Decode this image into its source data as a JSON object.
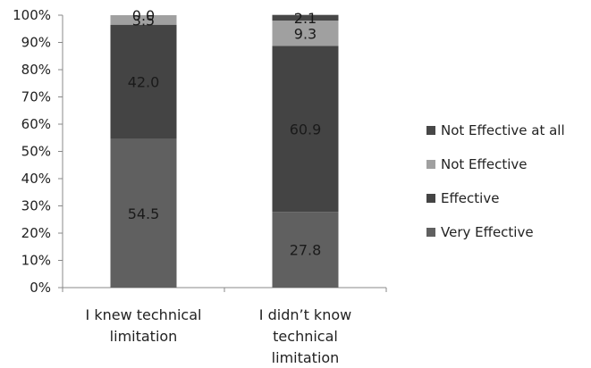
{
  "chart_data": {
    "type": "bar",
    "stacked": true,
    "categories": [
      [
        "I knew technical",
        "limitation"
      ],
      [
        "I didn’t know",
        "technical",
        "limitation"
      ]
    ],
    "series": [
      {
        "name": "Very Effective",
        "values": [
          54.5,
          27.8
        ],
        "labels": [
          "54.5",
          "27.8"
        ],
        "color": "#606060"
      },
      {
        "name": "Effective",
        "values": [
          42.0,
          60.9
        ],
        "labels": [
          "42.0",
          "60.9"
        ],
        "color": "#444444"
      },
      {
        "name": "Not Effective",
        "values": [
          3.5,
          9.3
        ],
        "labels": [
          "3.5",
          "9.3"
        ],
        "color": "#a0a0a0"
      },
      {
        "name": "Not Effective at all",
        "values": [
          0.0,
          2.1
        ],
        "labels": [
          "0.0",
          "2.1"
        ],
        "color": "#474747"
      }
    ],
    "yticks": [
      "0%",
      "10%",
      "20%",
      "30%",
      "40%",
      "50%",
      "60%",
      "70%",
      "80%",
      "90%",
      "100%"
    ],
    "ylim": [
      0,
      100
    ],
    "grid": false,
    "legend_position": "right",
    "title": "",
    "xlabel": "",
    "ylabel": ""
  }
}
